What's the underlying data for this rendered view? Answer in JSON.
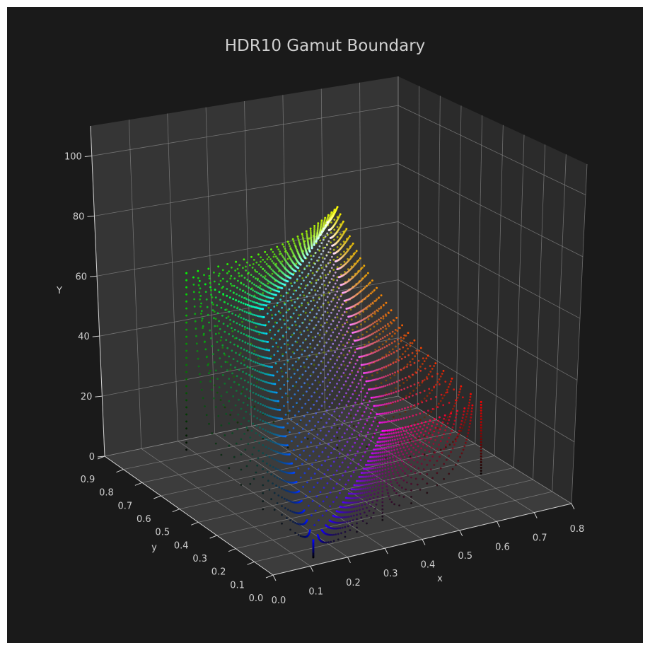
{
  "chart_data": {
    "type": "scatter",
    "title": "HDR10 Gamut Boundary",
    "xlabel": "x",
    "ylabel": "y",
    "zlabel": "Y",
    "x_ticks": [
      "0.0",
      "0.1",
      "0.2",
      "0.3",
      "0.4",
      "0.5",
      "0.6",
      "0.7",
      "0.8"
    ],
    "y_ticks": [
      "0.0",
      "0.1",
      "0.2",
      "0.3",
      "0.4",
      "0.5",
      "0.6",
      "0.7",
      "0.8",
      "0.9"
    ],
    "z_ticks": [
      "0",
      "20",
      "40",
      "60",
      "80",
      "100"
    ],
    "xlim": [
      0.0,
      0.8
    ],
    "ylim": [
      0.0,
      0.9
    ],
    "zlim": [
      0,
      110
    ],
    "grid": true,
    "primaries": {
      "red": {
        "x": 0.708,
        "y": 0.292,
        "Y": 26.27
      },
      "green": {
        "x": 0.17,
        "y": 0.797,
        "Y": 67.8
      },
      "blue": {
        "x": 0.131,
        "y": 0.046,
        "Y": 5.93
      },
      "white": {
        "x": 0.3127,
        "y": 0.329,
        "Y": 100
      }
    },
    "series": [],
    "colors": {
      "background": "#1a1a1a",
      "pane": "#353535",
      "grid": "#8c8c8c",
      "red": "#e0104a",
      "green": "#22c418",
      "blue": "#2030ff",
      "cyan": "#10e8e8",
      "magenta": "#d814c8",
      "yellow": "#e6e61a",
      "white": "#ffffff"
    }
  }
}
